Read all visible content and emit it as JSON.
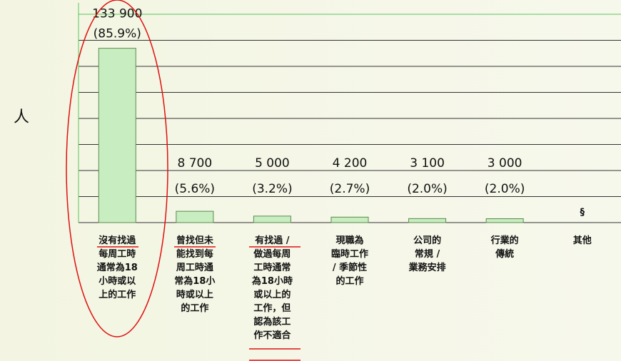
{
  "chart_data": {
    "type": "bar",
    "y_label": "人",
    "categories": [
      "沒有找過\n每周工時\n通常為18\n小時或以\n上的工作",
      "曾找但未\n能找到每\n周工時通\n常為18小\n時或以上\n的工作",
      "有找過 /\n做過每周\n工時通常\n為18小時\n或以上的\n工作，但\n認為該工\n作不適合",
      "現職為\n臨時工作\n/ 季節性\n的工作",
      "公司的\n常規 /\n業務安排",
      "行業的\n傳統",
      "其他"
    ],
    "values": [
      133900,
      8700,
      5000,
      4200,
      3100,
      3000,
      null
    ],
    "value_labels": [
      "133 900",
      "8 700",
      "5 000",
      "4 200",
      "3 100",
      "3 000",
      "§"
    ],
    "percentages": [
      85.9,
      5.6,
      3.2,
      2.7,
      2.0,
      2.0,
      null
    ],
    "percentage_labels": [
      "(85.9%)",
      "(5.6%)",
      "(3.2%)",
      "(2.7%)",
      "(2.0%)",
      "(2.0%)",
      null
    ],
    "color": "#c8edc0",
    "ylim": [
      0,
      160000
    ],
    "yticks": [
      0,
      20000,
      40000,
      60000,
      80000,
      100000,
      120000,
      140000,
      160000
    ],
    "grid": true
  }
}
